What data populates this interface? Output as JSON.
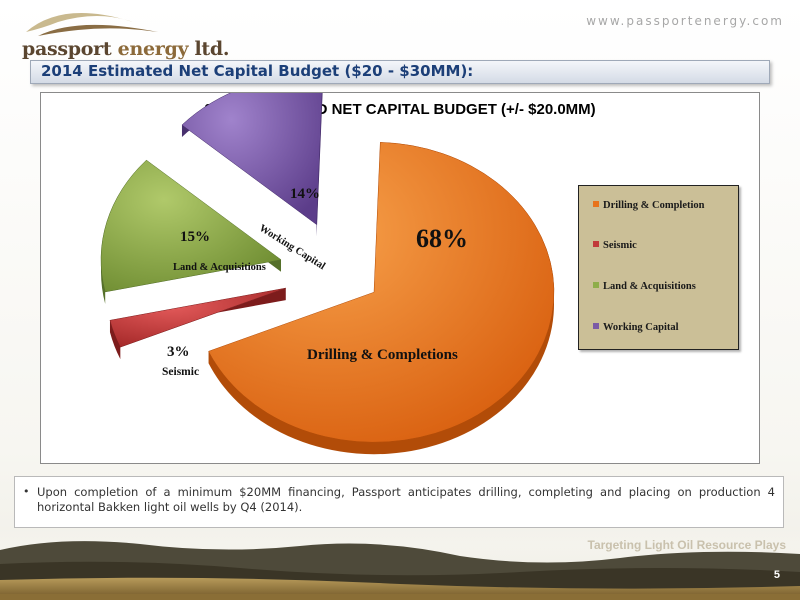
{
  "header": {
    "logo_text_pre": "passport ",
    "logo_text_energy": "energy",
    "logo_text_post": " ltd.",
    "website": "www.passportenergy.com"
  },
  "section_title": "2014 Estimated Net Capital Budget ($20 - $30MM):",
  "chart_data": {
    "type": "pie",
    "title": "2014 ESTIMATED NET CAPITAL BUDGET (+/- $20.0MM)",
    "slices": [
      {
        "name": "Drilling & Completion",
        "percent": 68,
        "label": "68%",
        "inner_label": "Drilling & Completions",
        "color": "#e8731c"
      },
      {
        "name": "Seismic",
        "percent": 3,
        "label": "3%",
        "inner_label": "Seismic",
        "color": "#c13a3a"
      },
      {
        "name": "Land & Acquisitions",
        "percent": 15,
        "label": "15%",
        "inner_label": "Land & Acquisitions",
        "color": "#8fad4a"
      },
      {
        "name": "Working Capital",
        "percent": 14,
        "label": "14%",
        "inner_label": "Working Capital",
        "color": "#7b5aa6"
      }
    ],
    "legend": [
      "Drilling & Completion",
      "Seismic",
      "Land & Acquisitions",
      "Working Capital"
    ],
    "legend_position": "right",
    "exploded": true,
    "style": "3d"
  },
  "bullets": [
    "Upon completion of a minimum $20MM financing, Passport anticipates drilling, completing and placing on production 4 horizontal Bakken light oil wells by Q4 (2014)."
  ],
  "footer": {
    "tagline": "Targeting Light Oil Resource Plays",
    "page_number": "5"
  },
  "colors": {
    "title_text": "#1c3f78",
    "legend_bg": "#cbbf97",
    "logo_brown": "#5b4630"
  },
  "icons": {
    "logo_mark": "mountain-arc-logo-icon",
    "footer_image": "prairie-landscape-photo"
  }
}
